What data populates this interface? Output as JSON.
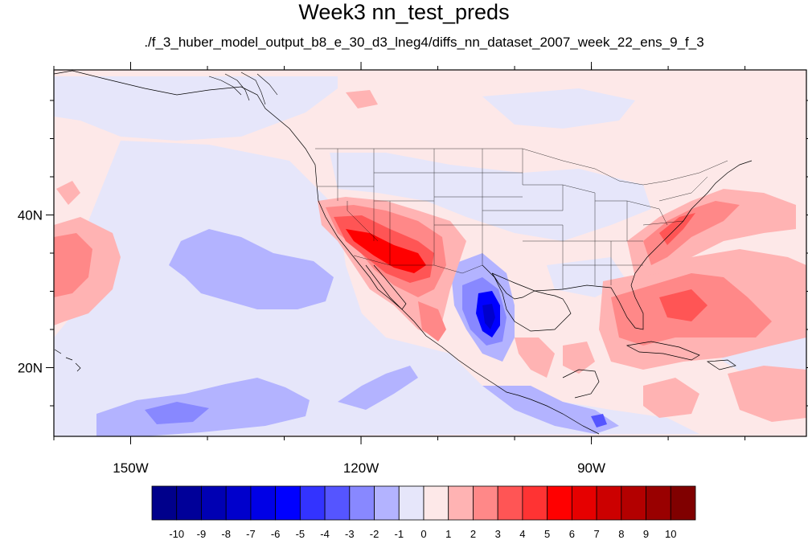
{
  "figure": {
    "title": "Week3 nn_test_preds",
    "subtitle": "./f_3_huber_model_output_b8_e_30_d3_lneg4/diffs_nn_dataset_2007_week_22_ens_9_f_3"
  },
  "map": {
    "projection": "cylindrical-equidistant",
    "lon_range": [
      -160,
      -62
    ],
    "lat_range": [
      11,
      59
    ],
    "x_ticks": [
      {
        "lon": -150,
        "label": "150W"
      },
      {
        "lon": -120,
        "label": "120W"
      },
      {
        "lon": -90,
        "label": "90W"
      }
    ],
    "y_ticks": [
      {
        "lat": 40,
        "label": "40N"
      },
      {
        "lat": 20,
        "label": "20N"
      }
    ],
    "background_color": "#fde8e8"
  },
  "colorbar": {
    "labels": [
      "-10",
      "-9",
      "-8",
      "-7",
      "-6",
      "-5",
      "-4",
      "-3",
      "-2",
      "-1",
      "0",
      "1",
      "2",
      "3",
      "4",
      "5",
      "6",
      "7",
      "8",
      "9",
      "10"
    ],
    "colors": [
      "#00008b",
      "#000099",
      "#0000b3",
      "#0000cc",
      "#0000e6",
      "#0000ff",
      "#3333ff",
      "#5555ff",
      "#8888ff",
      "#b3b3ff",
      "#e6e6fa",
      "#fde8e8",
      "#ffb3b3",
      "#ff8888",
      "#ff5555",
      "#ff3333",
      "#ff0000",
      "#e60000",
      "#cc0000",
      "#b30000",
      "#990000",
      "#800000"
    ]
  }
}
